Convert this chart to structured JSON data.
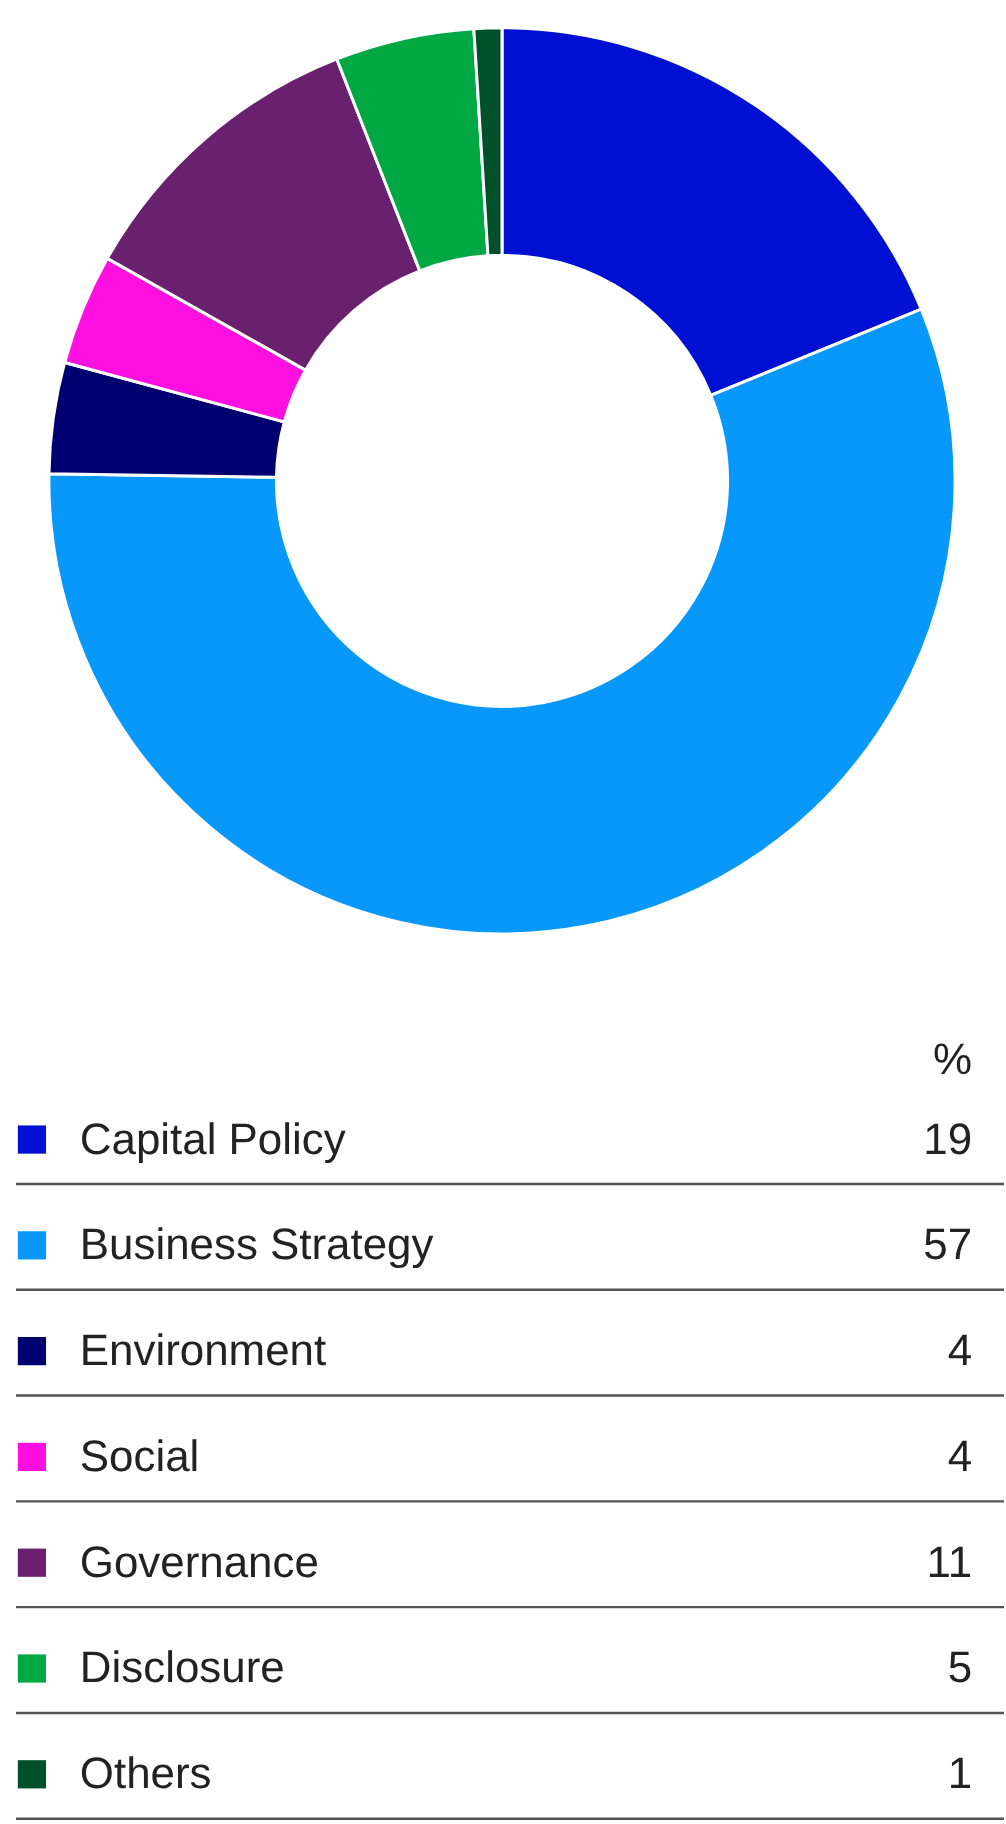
{
  "chart_data": {
    "type": "donut",
    "categories": [
      "Capital Policy",
      "Business Strategy",
      "Environment",
      "Social",
      "Governance",
      "Disclosure",
      "Others"
    ],
    "values": [
      19,
      57,
      4,
      4,
      11,
      5,
      1
    ],
    "colors": [
      "#0010d2",
      "#0898fa",
      "#000070",
      "#ff10e0",
      "#68206f",
      "#00a843",
      "#00502a"
    ],
    "legend_title": "%",
    "legend": "bottom",
    "data_labels": true
  }
}
